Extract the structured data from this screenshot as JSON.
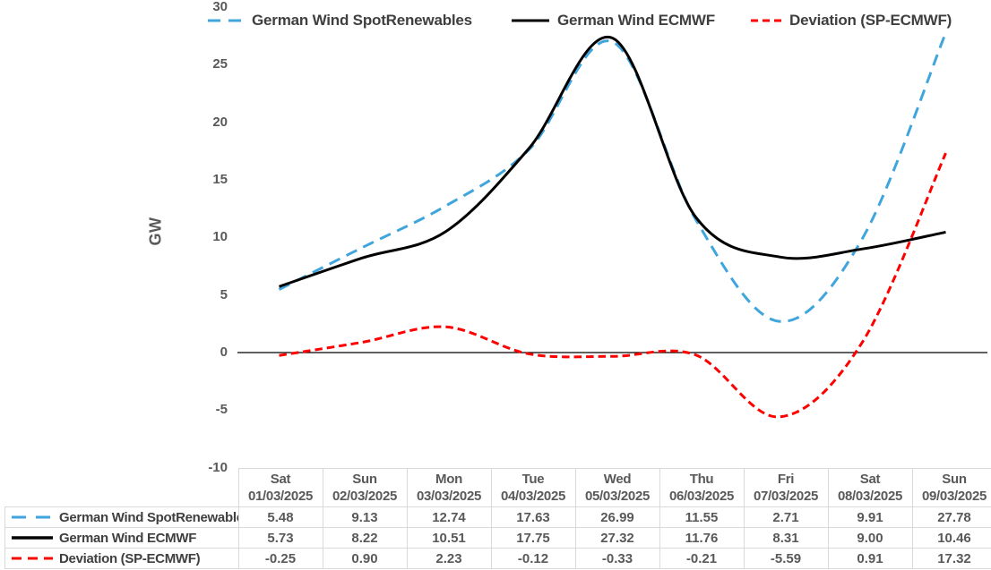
{
  "chart_data": {
    "type": "line",
    "title": "",
    "ylabel": "GW",
    "ylim": [
      -10,
      30
    ],
    "ytick_step": 5,
    "grid": false,
    "legend_position": "top",
    "line_shape": "smooth",
    "zero_baseline": true,
    "categories": [
      {
        "day": "Sat",
        "date": "01/03/2025"
      },
      {
        "day": "Sun",
        "date": "02/03/2025"
      },
      {
        "day": "Mon",
        "date": "03/03/2025"
      },
      {
        "day": "Tue",
        "date": "04/03/2025"
      },
      {
        "day": "Wed",
        "date": "05/03/2025"
      },
      {
        "day": "Thu",
        "date": "06/03/2025"
      },
      {
        "day": "Fri",
        "date": "07/03/2025"
      },
      {
        "day": "Sat",
        "date": "08/03/2025"
      },
      {
        "day": "Sun",
        "date": "09/03/2025"
      }
    ],
    "series": [
      {
        "name": "German Wind SpotRenewables",
        "color": "#3FA5DC",
        "style": "dashed",
        "values": [
          5.48,
          9.13,
          12.74,
          17.63,
          26.99,
          11.55,
          2.71,
          9.91,
          27.78
        ]
      },
      {
        "name": "German Wind ECMWF",
        "color": "#000000",
        "style": "solid",
        "values": [
          5.73,
          8.22,
          10.51,
          17.75,
          27.32,
          11.76,
          8.31,
          9.0,
          10.46
        ]
      },
      {
        "name": "Deviation (SP-ECMWF)",
        "color": "#FF0000",
        "style": "dashed-short",
        "values": [
          -0.25,
          0.9,
          2.23,
          -0.12,
          -0.33,
          -0.21,
          -5.59,
          0.91,
          17.32
        ]
      }
    ]
  },
  "styles": {
    "legend_text": "#3F3F3F",
    "tick_text": "#595959",
    "table_border": "#D9D9D9",
    "axis_line": "#000000"
  }
}
